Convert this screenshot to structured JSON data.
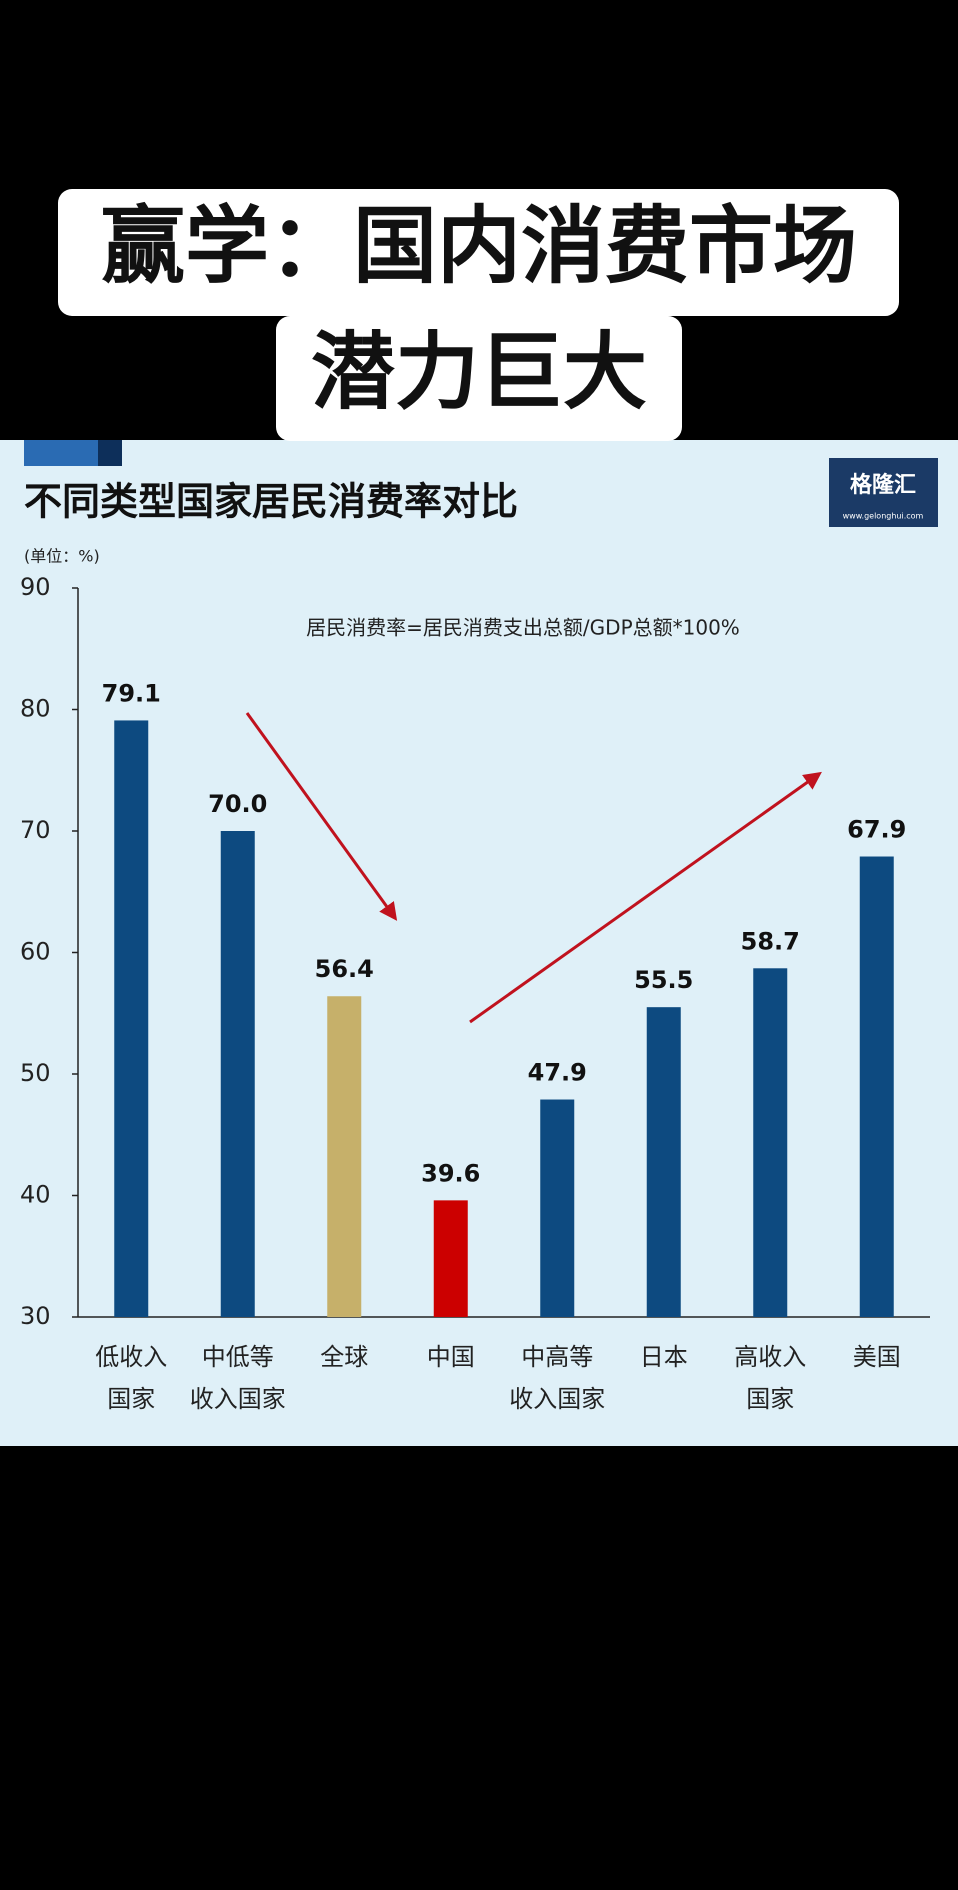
{
  "headline": {
    "line1": "赢学：国内消费市场",
    "line2": "潜力巨大"
  },
  "logo": {
    "name": "格隆汇",
    "url": "www.gelonghui.com"
  },
  "chart_data": {
    "type": "bar",
    "title": "不同类型国家居民消费率对比",
    "unit": "(单位：%)",
    "annotation": "居民消费率=居民消费支出总额/GDP总额*100%",
    "categories": [
      "低收入\n国家",
      "中低等\n收入国家",
      "全球",
      "中国",
      "中高等\n收入国家",
      "日本",
      "高收入\n国家",
      "美国"
    ],
    "values": [
      79.1,
      70.0,
      56.4,
      39.6,
      47.9,
      55.5,
      58.7,
      67.9
    ],
    "value_labels": [
      "79.1",
      "70.0",
      "56.4",
      "39.6",
      "47.9",
      "55.5",
      "58.7",
      "67.9"
    ],
    "colors": [
      "#0d4a80",
      "#0d4a80",
      "#c6b06a",
      "#cc0000",
      "#0d4a80",
      "#0d4a80",
      "#0d4a80",
      "#0d4a80"
    ],
    "ylim": [
      30,
      90
    ],
    "yticks": [
      30,
      40,
      50,
      60,
      70,
      80,
      90
    ],
    "grid": false
  }
}
